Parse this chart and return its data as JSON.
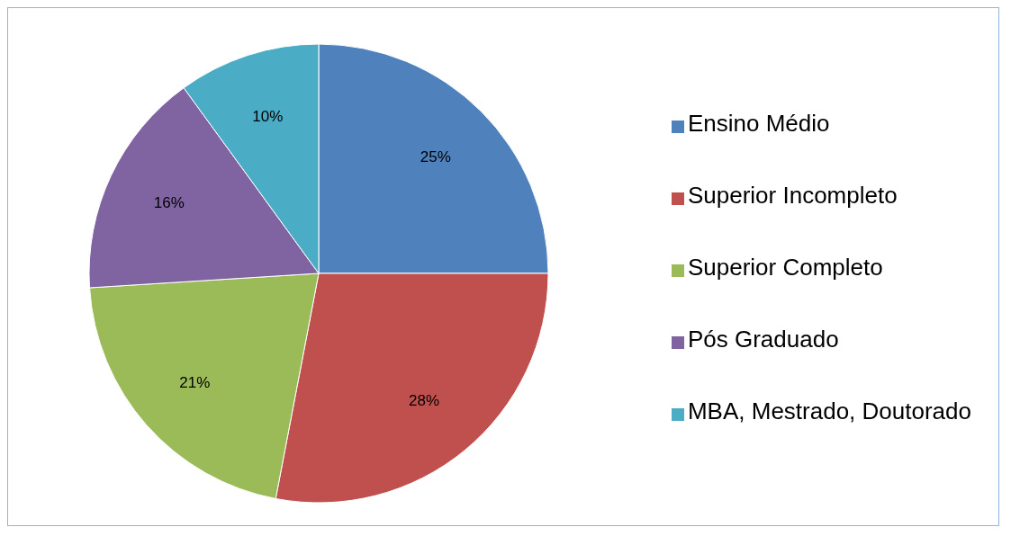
{
  "chart_data": {
    "type": "pie",
    "categories": [
      "Ensino Médio",
      "Superior Incompleto",
      "Superior Completo",
      "Pós Graduado",
      "MBA, Mestrado, Doutorado"
    ],
    "values": [
      25,
      28,
      21,
      16,
      10
    ],
    "colors": [
      "#4f81bd",
      "#c0504d",
      "#9bbb59",
      "#8064a2",
      "#4bacc6"
    ],
    "value_labels": [
      "25%",
      "28%",
      "21%",
      "16%",
      "10%"
    ],
    "legend": "right"
  }
}
